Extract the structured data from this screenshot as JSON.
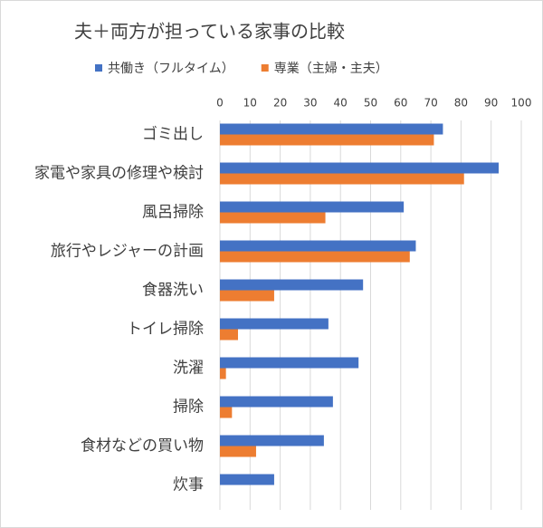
{
  "chart_data": {
    "type": "bar",
    "orientation": "horizontal",
    "title": "夫＋両方が担っている家事の比較",
    "categories": [
      "ゴミ出し",
      "家電や家具の修理や検討",
      "風呂掃除",
      "旅行やレジャーの計画",
      "食器洗い",
      "トイレ掃除",
      "洗濯",
      "掃除",
      "食材などの買い物",
      "炊事"
    ],
    "series": [
      {
        "name": "共働き（フルタイム）",
        "color": "#4472c4",
        "values": [
          74,
          92.5,
          61,
          65,
          47.5,
          36,
          46,
          37.5,
          34.5,
          18
        ]
      },
      {
        "name": "専業（主婦・主夫）",
        "color": "#ed7d31",
        "values": [
          71,
          81,
          35,
          63,
          18,
          6,
          2,
          4,
          12,
          0
        ]
      }
    ],
    "xlim": [
      0,
      100
    ],
    "xticks": [
      0,
      10,
      20,
      30,
      40,
      50,
      60,
      70,
      80,
      90,
      100
    ],
    "grid": true,
    "legend": "top"
  }
}
